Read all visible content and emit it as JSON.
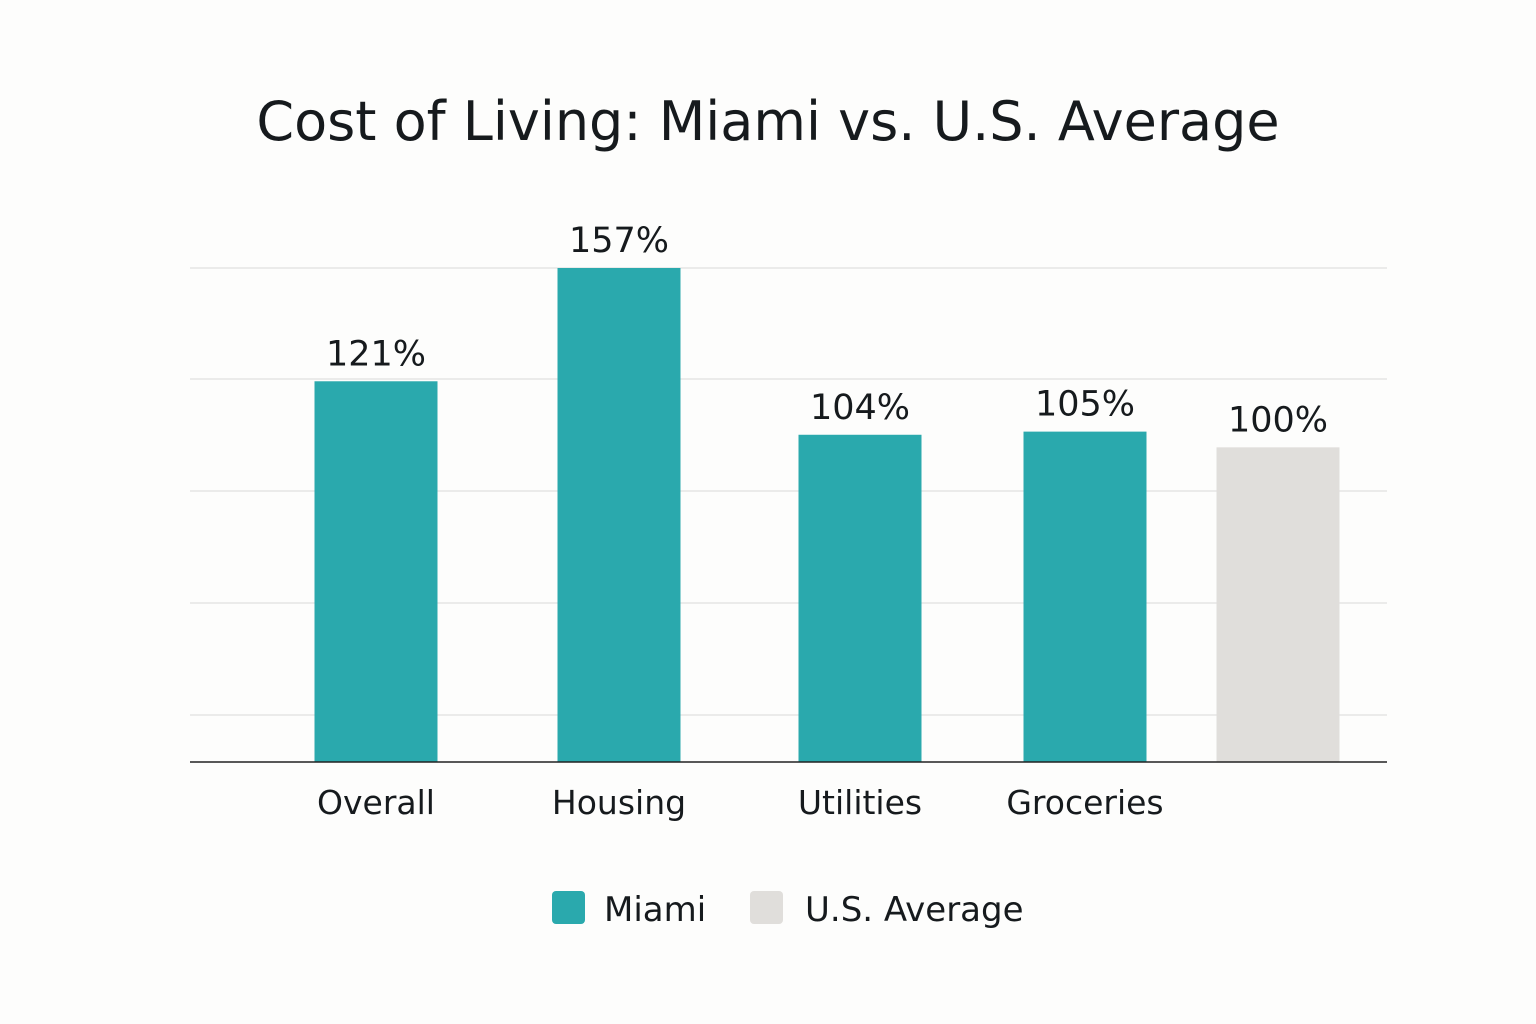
{
  "chart_data": {
    "type": "bar",
    "title": "Cost of Living: Miami vs. U.S. Average",
    "xlabel": "",
    "ylabel": "",
    "grid": true,
    "legend_position": "bottom",
    "ylim": [
      0,
      160
    ],
    "points": [
      {
        "category": "Overall",
        "value": 121,
        "label": "121%",
        "series": "Miami"
      },
      {
        "category": "Housing",
        "value": 157,
        "label": "157%",
        "series": "Miami"
      },
      {
        "category": "Utilities",
        "value": 104,
        "label": "104%",
        "series": "Miami"
      },
      {
        "category": "Groceries",
        "value": 105,
        "label": "105%",
        "series": "Miami"
      },
      {
        "category": "",
        "value": 100,
        "label": "100%",
        "series": "U.S. Average"
      }
    ],
    "series": [
      {
        "name": "Miami",
        "color": "#2aa9ad"
      },
      {
        "name": "U.S. Average",
        "color": "#e0dedb"
      }
    ]
  }
}
